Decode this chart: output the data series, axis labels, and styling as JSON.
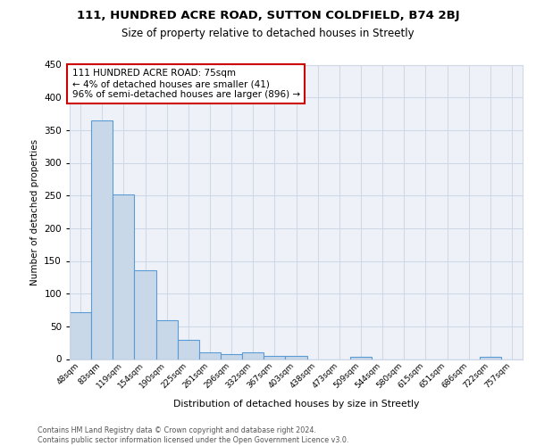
{
  "title1": "111, HUNDRED ACRE ROAD, SUTTON COLDFIELD, B74 2BJ",
  "title2": "Size of property relative to detached houses in Streetly",
  "xlabel": "Distribution of detached houses by size in Streetly",
  "ylabel": "Number of detached properties",
  "bin_labels": [
    "48sqm",
    "83sqm",
    "119sqm",
    "154sqm",
    "190sqm",
    "225sqm",
    "261sqm",
    "296sqm",
    "332sqm",
    "367sqm",
    "403sqm",
    "438sqm",
    "473sqm",
    "509sqm",
    "544sqm",
    "580sqm",
    "615sqm",
    "651sqm",
    "686sqm",
    "722sqm",
    "757sqm"
  ],
  "bar_heights": [
    72,
    365,
    251,
    136,
    59,
    30,
    10,
    8,
    10,
    5,
    5,
    0,
    0,
    4,
    0,
    0,
    0,
    0,
    0,
    4,
    0
  ],
  "bar_color": "#c8d8e8",
  "bar_edge_color": "#5b9bd5",
  "annotation_line1": "111 HUNDRED ACRE ROAD: 75sqm",
  "annotation_line2": "← 4% of detached houses are smaller (41)",
  "annotation_line3": "96% of semi-detached houses are larger (896) →",
  "annotation_box_edge": "#cc0000",
  "grid_color": "#d0d8e8",
  "background_color": "#eef2f8",
  "footer_text": "Contains HM Land Registry data © Crown copyright and database right 2024.\nContains public sector information licensed under the Open Government Licence v3.0.",
  "ylim": [
    0,
    450
  ],
  "yticks": [
    0,
    50,
    100,
    150,
    200,
    250,
    300,
    350,
    400,
    450
  ]
}
